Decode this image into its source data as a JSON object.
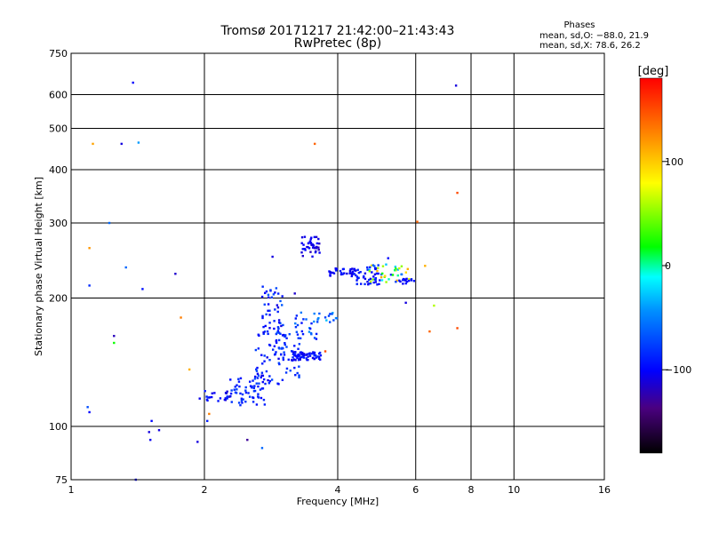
{
  "chart_data": {
    "type": "scatter",
    "title": "Tromsø 20171217 21:42:00–21:43:43",
    "subtitle": "RwPretec (8p)",
    "stats_header": "Phases",
    "stats_o": "mean, sd,O: −88.0, 21.9",
    "stats_x": "mean, sd,X:  78.6, 26.2",
    "xlabel": "Frequency [MHz]",
    "ylabel": "Stationary phase Virtual Height [km]",
    "xscale": "log",
    "yscale": "log",
    "xlim": [
      1,
      16
    ],
    "ylim": [
      75,
      750
    ],
    "x_ticks": [
      1,
      2,
      4,
      6,
      8,
      10,
      16
    ],
    "x_tick_labels": [
      "1",
      "2",
      "4",
      "6",
      "8",
      "10",
      "16"
    ],
    "y_ticks": [
      75,
      100,
      200,
      300,
      400,
      500,
      600,
      750
    ],
    "y_tick_labels": [
      "75",
      "100",
      "200",
      "300",
      "400",
      "500",
      "600",
      "750"
    ],
    "grid": true,
    "colorbar": {
      "label": "[deg]",
      "range": [
        -180,
        180
      ],
      "ticks": [
        100,
        0,
        -100
      ],
      "tick_labels": [
        "100",
        "0",
        "−100"
      ]
    },
    "clusters": [
      {
        "x_range": [
          1.95,
          2.3
        ],
        "y_range": [
          114,
          122
        ],
        "phase_range": [
          -115,
          -85
        ],
        "count": 22
      },
      {
        "x_range": [
          2.25,
          2.75
        ],
        "y_range": [
          112,
          130
        ],
        "phase_range": [
          -100,
          -75
        ],
        "count": 55
      },
      {
        "x_range": [
          2.6,
          3.05
        ],
        "y_range": [
          125,
          175
        ],
        "phase_range": [
          -110,
          -70
        ],
        "count": 70
      },
      {
        "x_range": [
          2.7,
          3.0
        ],
        "y_range": [
          165,
          215
        ],
        "phase_range": [
          -110,
          -60
        ],
        "count": 40
      },
      {
        "x_range": [
          2.95,
          3.3
        ],
        "y_range": [
          130,
          165
        ],
        "phase_range": [
          -100,
          -70
        ],
        "count": 30
      },
      {
        "x_range": [
          3.15,
          3.7
        ],
        "y_range": [
          143,
          150
        ],
        "phase_range": [
          -110,
          -85
        ],
        "count": 60
      },
      {
        "x_range": [
          3.2,
          3.65
        ],
        "y_range": [
          160,
          185
        ],
        "phase_range": [
          -100,
          -40
        ],
        "count": 28
      },
      {
        "x_range": [
          3.3,
          3.65
        ],
        "y_range": [
          250,
          280
        ],
        "phase_range": [
          -120,
          -95
        ],
        "count": 40
      },
      {
        "x_range": [
          3.75,
          4.0
        ],
        "y_range": [
          175,
          185
        ],
        "phase_range": [
          -80,
          -20
        ],
        "count": 10
      },
      {
        "x_range": [
          3.8,
          4.4
        ],
        "y_range": [
          225,
          235
        ],
        "phase_range": [
          -110,
          -90
        ],
        "count": 30
      },
      {
        "x_range": [
          4.3,
          5.0
        ],
        "y_range": [
          215,
          235
        ],
        "phase_range": [
          -110,
          -80
        ],
        "count": 45
      },
      {
        "x_range": [
          4.6,
          5.8
        ],
        "y_range": [
          218,
          240
        ],
        "phase_range": [
          -105,
          115
        ],
        "count": 40
      },
      {
        "x_range": [
          5.5,
          5.95
        ],
        "y_range": [
          216,
          222
        ],
        "phase_range": [
          -110,
          -90
        ],
        "count": 16
      }
    ],
    "scattered_points": [
      {
        "x": 1.1,
        "y": 108,
        "phase": -100
      },
      {
        "x": 1.09,
        "y": 111,
        "phase": -70
      },
      {
        "x": 1.1,
        "y": 214,
        "phase": -85
      },
      {
        "x": 1.1,
        "y": 262,
        "phase": 120
      },
      {
        "x": 1.12,
        "y": 460,
        "phase": 115
      },
      {
        "x": 1.22,
        "y": 300,
        "phase": -60
      },
      {
        "x": 1.25,
        "y": 163,
        "phase": -120
      },
      {
        "x": 1.25,
        "y": 157,
        "phase": 20
      },
      {
        "x": 1.3,
        "y": 460,
        "phase": -110
      },
      {
        "x": 1.33,
        "y": 236,
        "phase": -60
      },
      {
        "x": 1.38,
        "y": 640,
        "phase": -100
      },
      {
        "x": 1.42,
        "y": 463,
        "phase": -40
      },
      {
        "x": 1.45,
        "y": 210,
        "phase": -95
      },
      {
        "x": 1.4,
        "y": 75,
        "phase": -100
      },
      {
        "x": 1.5,
        "y": 97,
        "phase": -110
      },
      {
        "x": 1.52,
        "y": 103,
        "phase": -100
      },
      {
        "x": 1.51,
        "y": 93,
        "phase": -105
      },
      {
        "x": 1.58,
        "y": 98,
        "phase": -110
      },
      {
        "x": 1.72,
        "y": 228,
        "phase": -115
      },
      {
        "x": 1.77,
        "y": 180,
        "phase": 130
      },
      {
        "x": 1.85,
        "y": 136,
        "phase": 110
      },
      {
        "x": 1.93,
        "y": 92,
        "phase": -110
      },
      {
        "x": 2.03,
        "y": 103,
        "phase": -90
      },
      {
        "x": 2.05,
        "y": 107,
        "phase": 130
      },
      {
        "x": 2.5,
        "y": 93,
        "phase": -130
      },
      {
        "x": 2.7,
        "y": 89,
        "phase": -60
      },
      {
        "x": 2.85,
        "y": 250,
        "phase": -110
      },
      {
        "x": 3.2,
        "y": 205,
        "phase": -115
      },
      {
        "x": 3.55,
        "y": 460,
        "phase": 140
      },
      {
        "x": 3.75,
        "y": 150,
        "phase": 150
      },
      {
        "x": 5.2,
        "y": 248,
        "phase": -100
      },
      {
        "x": 5.7,
        "y": 195,
        "phase": -110
      },
      {
        "x": 6.05,
        "y": 302,
        "phase": 140
      },
      {
        "x": 6.3,
        "y": 238,
        "phase": 110
      },
      {
        "x": 6.45,
        "y": 167,
        "phase": 140
      },
      {
        "x": 6.6,
        "y": 192,
        "phase": 60
      },
      {
        "x": 7.4,
        "y": 630,
        "phase": -110
      },
      {
        "x": 7.45,
        "y": 353,
        "phase": 150
      },
      {
        "x": 7.45,
        "y": 170,
        "phase": 150
      }
    ]
  }
}
